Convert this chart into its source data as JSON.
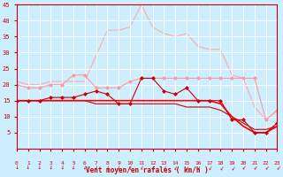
{
  "x": [
    0,
    1,
    2,
    3,
    4,
    5,
    6,
    7,
    8,
    9,
    10,
    11,
    12,
    13,
    14,
    15,
    16,
    17,
    18,
    19,
    20,
    21,
    22,
    23
  ],
  "lines": [
    {
      "y": [
        15,
        15,
        15,
        15,
        15,
        15,
        15,
        14,
        14,
        14,
        14,
        14,
        14,
        14,
        14,
        13,
        13,
        13,
        12,
        10,
        8,
        6,
        6,
        7
      ],
      "color": "#cc0000",
      "lw": 0.8,
      "marker": null,
      "zorder": 3
    },
    {
      "y": [
        15,
        15,
        15,
        15,
        15,
        15,
        15,
        15,
        15,
        15,
        15,
        15,
        15,
        15,
        15,
        15,
        15,
        15,
        14,
        10,
        7,
        5,
        5,
        7
      ],
      "color": "#ff0000",
      "lw": 1.2,
      "marker": null,
      "zorder": 3
    },
    {
      "y": [
        15,
        15,
        15,
        16,
        16,
        16,
        17,
        18,
        17,
        14,
        14,
        22,
        22,
        18,
        17,
        19,
        15,
        15,
        15,
        9,
        9,
        5,
        5,
        8
      ],
      "color": "#cc0000",
      "lw": 0.8,
      "marker": "D",
      "markersize": 2,
      "zorder": 4
    },
    {
      "y": [
        20,
        19,
        19,
        20,
        20,
        23,
        23,
        19,
        19,
        19,
        21,
        22,
        22,
        22,
        22,
        22,
        22,
        22,
        22,
        22,
        22,
        22,
        9,
        12
      ],
      "color": "#ff9999",
      "lw": 0.8,
      "marker": "D",
      "markersize": 2,
      "zorder": 2
    },
    {
      "y": [
        21,
        20,
        20,
        21,
        21,
        21,
        21,
        29,
        37,
        37,
        38,
        45,
        38,
        36,
        35,
        36,
        32,
        31,
        31,
        23,
        22,
        13,
        9,
        12
      ],
      "color": "#ffaaaa",
      "lw": 0.8,
      "marker": null,
      "zorder": 1
    }
  ],
  "xlabel": "Vent moyen/en rafales ( km/h )",
  "ylim": [
    0,
    45
  ],
  "xlim": [
    0,
    23
  ],
  "yticks": [
    5,
    10,
    15,
    20,
    25,
    30,
    35,
    40,
    45
  ],
  "xticks": [
    0,
    1,
    2,
    3,
    4,
    5,
    6,
    7,
    8,
    9,
    10,
    11,
    12,
    13,
    14,
    15,
    16,
    17,
    18,
    19,
    20,
    21,
    22,
    23
  ],
  "bg_color": "#cceeff",
  "grid_color": "#ffffff",
  "tick_color": "#cc0000",
  "label_color": "#cc0000"
}
